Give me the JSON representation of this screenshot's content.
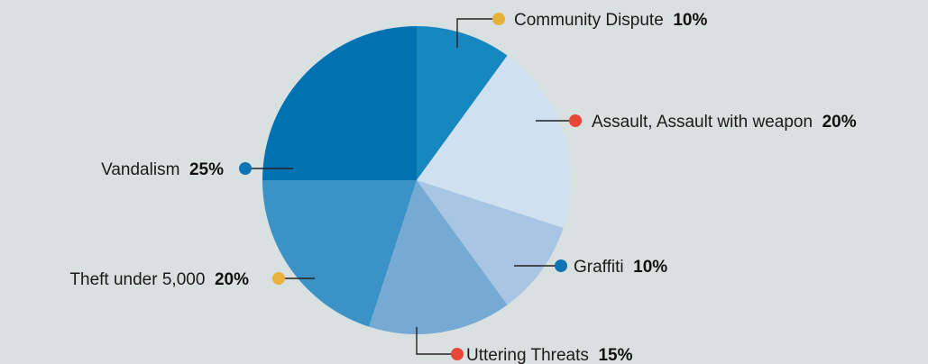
{
  "chart_data": {
    "type": "pie",
    "title": "",
    "start_angle_deg": 0,
    "direction": "clockwise",
    "slices": [
      {
        "label": "Community Dispute",
        "value": 10,
        "value_label": "10%",
        "color": "#1787bf",
        "marker_color": "#e8b23a"
      },
      {
        "label": "Assault, Assault with weapon",
        "value": 20,
        "value_label": "20%",
        "color": "#cfe0f1",
        "marker_color": "#e84636"
      },
      {
        "label": "Graffiti",
        "value": 10,
        "value_label": "10%",
        "color": "#a8c6e4",
        "marker_color": "#0e74b4"
      },
      {
        "label": "Uttering Threats",
        "value": 15,
        "value_label": "15%",
        "color": "#74aad3",
        "marker_color": "#e84636"
      },
      {
        "label": "Theft  under 5,000",
        "value": 20,
        "value_label": "20%",
        "color": "#3a92c6",
        "marker_color": "#e8b23a"
      },
      {
        "label": "Vandalism",
        "value": 25,
        "value_label": "25%",
        "color": "#0072b2",
        "marker_color": "#0e74b4"
      }
    ],
    "legend": "callouts"
  }
}
